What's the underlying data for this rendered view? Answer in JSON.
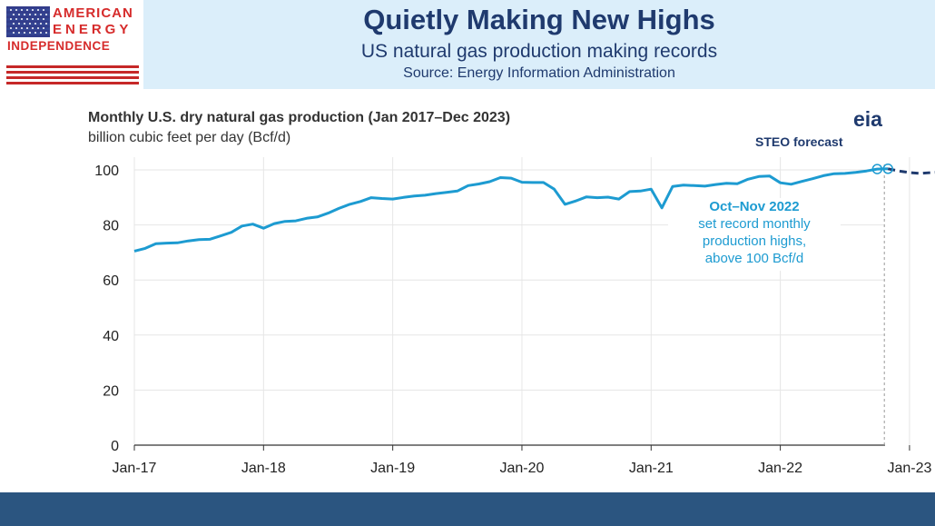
{
  "header": {
    "logo_lines": [
      "AMERICAN",
      "ENERGY",
      "INDEPENDENCE"
    ],
    "title": "Quietly Making New Highs",
    "subtitle": "US natural gas production making records",
    "source": "Source: Energy Information Administration"
  },
  "colors": {
    "header_bg": "#dbeefa",
    "title_color": "#1f3a6e",
    "logo_red": "#d62b2b",
    "line_color": "#1d9bd1",
    "forecast_color": "#1f3a6e",
    "footer_bg": "#2b5580"
  },
  "chart_data": {
    "type": "line",
    "title": "Monthly U.S. dry natural gas production (Jan 2017–Dec 2023)",
    "ylabel": "billion cubic feet per day (Bcf/d)",
    "xlabel": "",
    "ylim": [
      0,
      100
    ],
    "yticks": [
      "0",
      "20",
      "40",
      "60",
      "80",
      "100"
    ],
    "xticks": [
      "Jan-17",
      "Jan-18",
      "Jan-19",
      "Jan-20",
      "Jan-21",
      "Jan-22",
      "Jan-23"
    ],
    "grid": true,
    "x_start": "Jan 2017",
    "series": [
      {
        "style": "solid",
        "values": [
          70.5,
          71.5,
          73.2,
          73.4,
          73.5,
          74.2,
          74.7,
          74.8,
          76.0,
          77.3,
          79.6,
          80.3,
          78.8,
          80.5,
          81.3,
          81.5,
          82.4,
          82.9,
          84.3,
          86.0,
          87.5,
          88.5,
          89.9,
          89.6,
          89.4,
          90.0,
          90.5,
          90.8,
          91.4,
          91.8,
          92.3,
          94.3,
          94.9,
          95.7,
          97.2,
          97.0,
          95.5,
          95.4,
          95.4,
          93.0,
          87.5,
          88.7,
          90.2,
          89.9,
          90.1,
          89.4,
          92.1,
          92.3,
          93.0,
          86.2,
          94.0,
          94.5,
          94.3,
          94.1,
          94.7,
          95.1,
          95.0,
          96.6,
          97.6,
          97.8,
          95.3,
          94.8,
          95.8,
          96.8,
          97.9,
          98.6,
          98.7,
          99.1,
          99.6,
          100.3,
          100.4
        ]
      },
      {
        "name": "STEO forecast",
        "style": "dashed",
        "values": [
          100.4,
          99.6,
          99.0,
          98.7,
          99.0,
          99.2,
          99.5,
          99.6,
          99.6,
          99.7,
          99.8,
          99.9,
          100.0,
          100.1,
          100.2
        ]
      }
    ],
    "annotation": {
      "title": "Oct–Nov 2022",
      "lines": [
        "set record monthly",
        "production highs,",
        "above 100 Bcf/d"
      ]
    },
    "forecast_label": "STEO forecast",
    "source_logo": "eia"
  }
}
